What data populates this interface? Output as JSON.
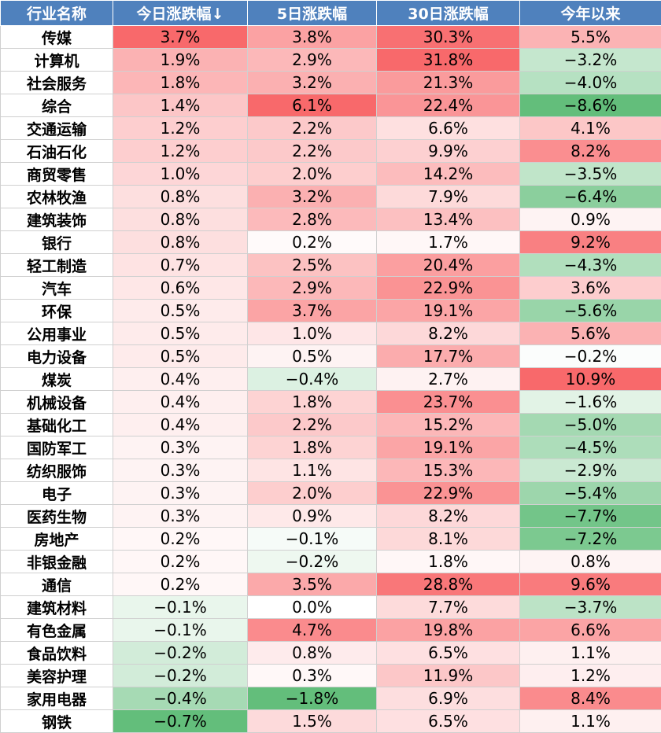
{
  "chart_data": {
    "type": "table",
    "columns": [
      "行业名称",
      "今日涨跌幅↓",
      "5日涨跌幅",
      "30日涨跌幅",
      "今年以来"
    ],
    "rows": [
      [
        "传媒",
        "3.7%",
        "3.8%",
        "30.3%",
        "5.5%"
      ],
      [
        "计算机",
        "1.9%",
        "2.9%",
        "31.8%",
        "−3.2%"
      ],
      [
        "社会服务",
        "1.8%",
        "3.2%",
        "21.3%",
        "−4.0%"
      ],
      [
        "综合",
        "1.4%",
        "6.1%",
        "22.4%",
        "−8.6%"
      ],
      [
        "交通运输",
        "1.2%",
        "2.2%",
        "6.6%",
        "4.1%"
      ],
      [
        "石油石化",
        "1.2%",
        "2.2%",
        "9.9%",
        "8.2%"
      ],
      [
        "商贸零售",
        "1.0%",
        "2.0%",
        "14.2%",
        "−3.5%"
      ],
      [
        "农林牧渔",
        "0.8%",
        "3.2%",
        "7.9%",
        "−6.4%"
      ],
      [
        "建筑装饰",
        "0.8%",
        "2.8%",
        "13.4%",
        "0.9%"
      ],
      [
        "银行",
        "0.8%",
        "0.2%",
        "1.7%",
        "9.2%"
      ],
      [
        "轻工制造",
        "0.7%",
        "2.5%",
        "20.4%",
        "−4.3%"
      ],
      [
        "汽车",
        "0.6%",
        "2.9%",
        "22.9%",
        "3.6%"
      ],
      [
        "环保",
        "0.5%",
        "3.7%",
        "19.1%",
        "−5.6%"
      ],
      [
        "公用事业",
        "0.5%",
        "1.0%",
        "8.2%",
        "5.6%"
      ],
      [
        "电力设备",
        "0.5%",
        "0.5%",
        "17.7%",
        "−0.2%"
      ],
      [
        "煤炭",
        "0.4%",
        "−0.4%",
        "2.7%",
        "10.9%"
      ],
      [
        "机械设备",
        "0.4%",
        "1.8%",
        "23.7%",
        "−1.6%"
      ],
      [
        "基础化工",
        "0.4%",
        "2.2%",
        "15.2%",
        "−5.0%"
      ],
      [
        "国防军工",
        "0.3%",
        "1.8%",
        "19.1%",
        "−4.5%"
      ],
      [
        "纺织服饰",
        "0.3%",
        "1.1%",
        "15.3%",
        "−2.9%"
      ],
      [
        "电子",
        "0.3%",
        "2.0%",
        "22.9%",
        "−5.4%"
      ],
      [
        "医药生物",
        "0.3%",
        "0.9%",
        "8.2%",
        "−7.7%"
      ],
      [
        "房地产",
        "0.2%",
        "−0.1%",
        "8.1%",
        "−7.2%"
      ],
      [
        "非银金融",
        "0.2%",
        "−0.2%",
        "1.8%",
        "0.8%"
      ],
      [
        "通信",
        "0.2%",
        "3.5%",
        "28.8%",
        "9.6%"
      ],
      [
        "建筑材料",
        "−0.1%",
        "0.0%",
        "7.7%",
        "−3.7%"
      ],
      [
        "有色金属",
        "−0.1%",
        "4.7%",
        "19.8%",
        "6.6%"
      ],
      [
        "食品饮料",
        "−0.2%",
        "0.8%",
        "6.5%",
        "1.1%"
      ],
      [
        "美容护理",
        "−0.2%",
        "0.3%",
        "11.9%",
        "1.2%"
      ],
      [
        "家用电器",
        "−0.4%",
        "−1.8%",
        "6.9%",
        "8.4%"
      ],
      [
        "钢铁",
        "−0.7%",
        "1.5%",
        "6.5%",
        "1.1%"
      ]
    ],
    "colors": {
      "header_bg": "#4f81bd",
      "positive": "#f8696b",
      "negative": "#63be7b",
      "neutral": "#ffffff"
    }
  }
}
